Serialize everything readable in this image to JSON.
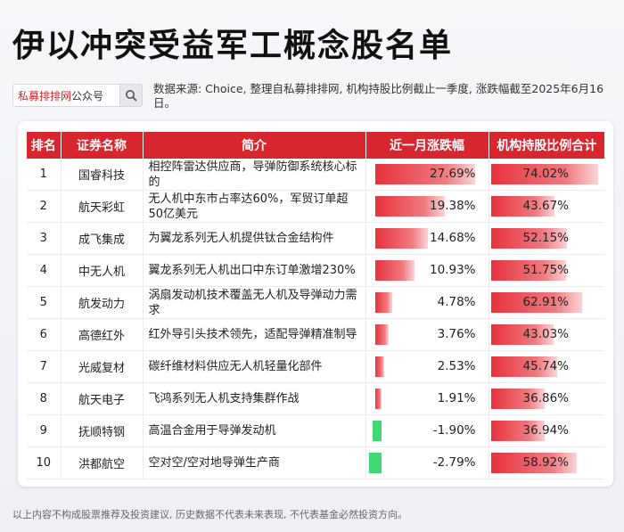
{
  "page_title": "伊以冲突受益军工概念股名单",
  "search": {
    "brand": "私募排排网",
    "suffix": "公众号"
  },
  "source_note": "数据来源: Choice, 整理自私募排排网, 机构持股比例截止一季度, 涨跌幅截至2025年6月16日。",
  "disclaimer": "以上内容不构成股票推荐及投资建议, 历史数据不代表未来表现, 不代表基金必然投资方向。",
  "colors": {
    "header": "#d8262e",
    "positive": "#e6323c",
    "negative": "#3fd873"
  },
  "chart_data": {
    "type": "table",
    "columns": [
      "排名",
      "证券名称",
      "简介",
      "近一月涨跌幅",
      "机构持股比例合计"
    ],
    "rows": [
      {
        "rank": "1",
        "name": "国睿科技",
        "desc": "相控阵雷达供应商，导弹防御系统核心标的",
        "change": 27.69,
        "change_label": "27.69%",
        "holding": 74.02,
        "holding_label": "74.02%"
      },
      {
        "rank": "2",
        "name": "航天彩虹",
        "desc": "无人机中东市占率达60%，军贸订单超50亿美元",
        "change": 19.38,
        "change_label": "19.38%",
        "holding": 43.67,
        "holding_label": "43.67%"
      },
      {
        "rank": "3",
        "name": "成飞集成",
        "desc": "为翼龙系列无人机提供钛合金结构件",
        "change": 14.68,
        "change_label": "14.68%",
        "holding": 52.15,
        "holding_label": "52.15%"
      },
      {
        "rank": "4",
        "name": "中无人机",
        "desc": "翼龙系列无人机出口中东订单激增230%",
        "change": 10.93,
        "change_label": "10.93%",
        "holding": 51.75,
        "holding_label": "51.75%"
      },
      {
        "rank": "5",
        "name": "航发动力",
        "desc": "涡扇发动机技术覆盖无人机及导弹动力需求",
        "change": 4.78,
        "change_label": "4.78%",
        "holding": 62.91,
        "holding_label": "62.91%"
      },
      {
        "rank": "6",
        "name": "高德红外",
        "desc": "红外导引头技术领先，适配导弹精准制导",
        "change": 3.76,
        "change_label": "3.76%",
        "holding": 43.03,
        "holding_label": "43.03%"
      },
      {
        "rank": "7",
        "name": "光威复材",
        "desc": "碳纤维材料供应无人机轻量化部件",
        "change": 2.53,
        "change_label": "2.53%",
        "holding": 45.74,
        "holding_label": "45.74%"
      },
      {
        "rank": "8",
        "name": "航天电子",
        "desc": "飞鸿系列无人机支持集群作战",
        "change": 1.91,
        "change_label": "1.91%",
        "holding": 36.86,
        "holding_label": "36.86%"
      },
      {
        "rank": "9",
        "name": "抚顺特钢",
        "desc": "高温合金用于导弹发动机",
        "change": -1.9,
        "change_label": "-1.90%",
        "holding": 36.94,
        "holding_label": "36.94%"
      },
      {
        "rank": "10",
        "name": "洪都航空",
        "desc": "空对空/空对地导弹生产商",
        "change": -2.79,
        "change_label": "-2.79%",
        "holding": 58.92,
        "holding_label": "58.92%"
      }
    ]
  }
}
